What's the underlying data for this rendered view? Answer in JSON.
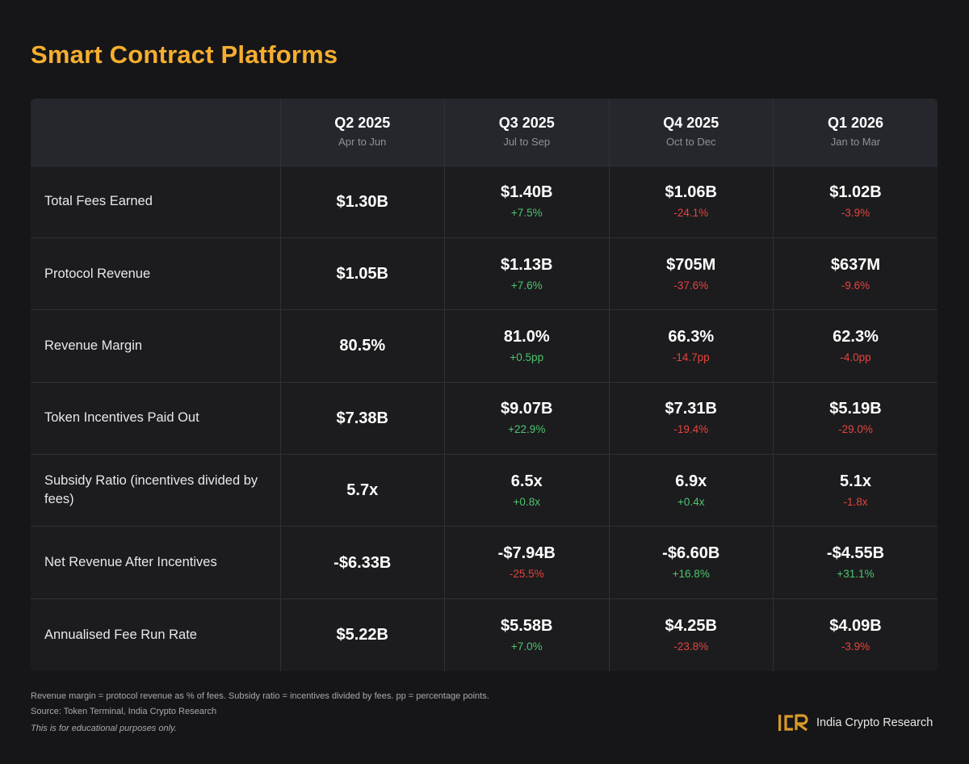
{
  "title": "Smart Contract Platforms",
  "chart_data": {
    "type": "table",
    "title": "Smart Contract Platforms",
    "columns": [
      {
        "label": "Q2 2025",
        "range": "Apr to Jun"
      },
      {
        "label": "Q3 2025",
        "range": "Jul to Sep"
      },
      {
        "label": "Q4 2025",
        "range": "Oct to Dec"
      },
      {
        "label": "Q1 2026",
        "range": "Jan to Mar"
      }
    ],
    "rows": [
      {
        "metric": "Total Fees Earned",
        "values": [
          "$1.30B",
          "$1.40B",
          "$1.06B",
          "$1.02B"
        ],
        "changes": [
          "",
          "+7.5%",
          "-24.1%",
          "-3.9%"
        ],
        "directions": [
          "",
          "pos",
          "neg",
          "neg"
        ]
      },
      {
        "metric": "Protocol Revenue",
        "values": [
          "$1.05B",
          "$1.13B",
          "$705M",
          "$637M"
        ],
        "changes": [
          "",
          "+7.6%",
          "-37.6%",
          "-9.6%"
        ],
        "directions": [
          "",
          "pos",
          "neg",
          "neg"
        ]
      },
      {
        "metric": "Revenue Margin",
        "values": [
          "80.5%",
          "81.0%",
          "66.3%",
          "62.3%"
        ],
        "changes": [
          "",
          "+0.5pp",
          "-14.7pp",
          "-4.0pp"
        ],
        "directions": [
          "",
          "pos",
          "neg",
          "neg"
        ]
      },
      {
        "metric": "Token Incentives Paid Out",
        "values": [
          "$7.38B",
          "$9.07B",
          "$7.31B",
          "$5.19B"
        ],
        "changes": [
          "",
          "+22.9%",
          "-19.4%",
          "-29.0%"
        ],
        "directions": [
          "",
          "pos",
          "neg",
          "neg"
        ]
      },
      {
        "metric": "Subsidy Ratio (incentives divided by fees)",
        "values": [
          "5.7x",
          "6.5x",
          "6.9x",
          "5.1x"
        ],
        "changes": [
          "",
          "+0.8x",
          "+0.4x",
          "-1.8x"
        ],
        "directions": [
          "",
          "pos",
          "pos",
          "neg"
        ]
      },
      {
        "metric": "Net Revenue After Incentives",
        "values": [
          "-$6.33B",
          "-$7.94B",
          "-$6.60B",
          "-$4.55B"
        ],
        "changes": [
          "",
          "-25.5%",
          "+16.8%",
          "+31.1%"
        ],
        "directions": [
          "",
          "neg",
          "pos",
          "pos"
        ]
      },
      {
        "metric": "Annualised Fee Run Rate",
        "values": [
          "$5.22B",
          "$5.58B",
          "$4.25B",
          "$4.09B"
        ],
        "changes": [
          "",
          "+7.0%",
          "-23.8%",
          "-3.9%"
        ],
        "directions": [
          "",
          "pos",
          "neg",
          "neg"
        ]
      }
    ]
  },
  "footer": {
    "note": "Revenue margin = protocol revenue as % of fees. Subsidy ratio = incentives divided by fees. pp = percentage points.",
    "source": "Source: Token Terminal, India Crypto Research",
    "disclaimer": "This is for educational purposes only."
  },
  "brand": {
    "logo_text": "ICR",
    "name": "India Crypto Research"
  },
  "colors": {
    "background": "#161618",
    "title": "#f5ae2f",
    "positive": "#4ec46b",
    "negative": "#e5443d"
  }
}
